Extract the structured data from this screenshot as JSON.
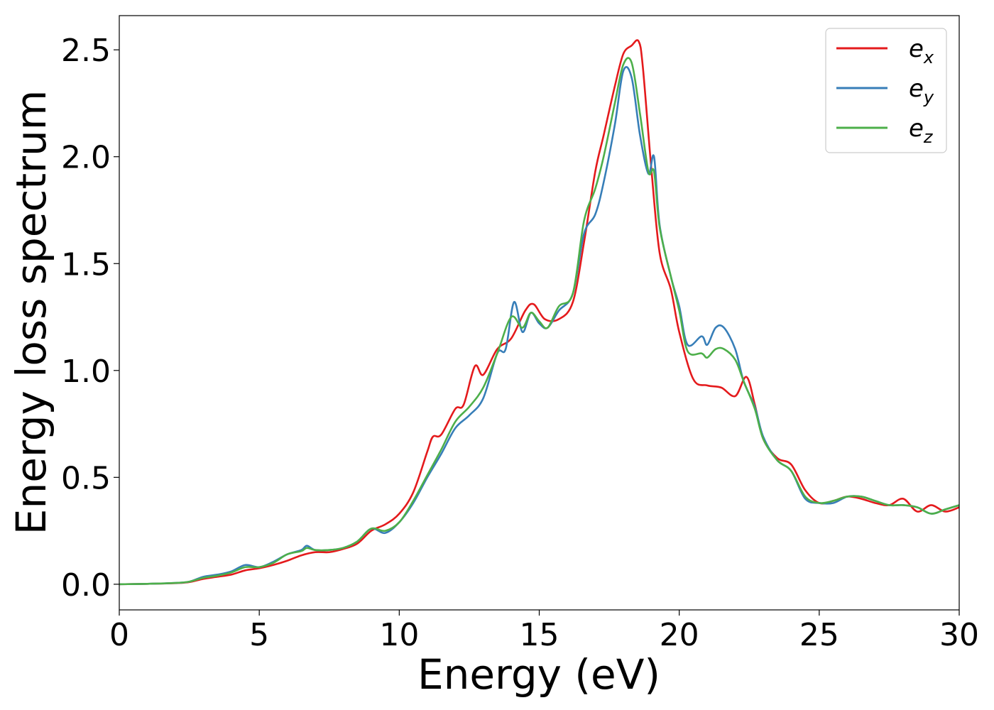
{
  "chart_data": {
    "type": "line",
    "title": "",
    "xlabel": "Energy (eV)",
    "ylabel": "Energy loss spectrum",
    "xlim": [
      0,
      30
    ],
    "ylim": [
      -0.12,
      2.66
    ],
    "xticks": [
      0,
      5,
      10,
      15,
      20,
      25,
      30
    ],
    "xtick_labels": [
      "0",
      "5",
      "10",
      "15",
      "20",
      "25",
      "30"
    ],
    "yticks": [
      0.0,
      0.5,
      1.0,
      1.5,
      2.0,
      2.5
    ],
    "ytick_labels": [
      "0.0",
      "0.5",
      "1.0",
      "1.5",
      "2.0",
      "2.5"
    ],
    "grid": false,
    "legend_position": "top-right",
    "series": [
      {
        "name": "e_x",
        "legend_base": "e",
        "legend_sub": "x",
        "color": "#e41a1c",
        "x": [
          0,
          1,
          2,
          2.5,
          3,
          3.5,
          4,
          4.5,
          5,
          5.5,
          6,
          6.5,
          7,
          7.5,
          8,
          8.5,
          9,
          9.5,
          10,
          10.5,
          11,
          11.2,
          11.5,
          12,
          12.3,
          12.7,
          13,
          13.5,
          14,
          14.5,
          14.8,
          15.2,
          15.7,
          16.2,
          16.6,
          17,
          17.3,
          17.7,
          18,
          18.3,
          18.55,
          18.7,
          19,
          19.3,
          19.7,
          20,
          20.5,
          21,
          21.5,
          22,
          22.4,
          22.7,
          23,
          23.5,
          24,
          24.5,
          25,
          25.5,
          26,
          26.5,
          27,
          27.5,
          28,
          28.5,
          29,
          29.5,
          30
        ],
        "y": [
          0.0,
          0.002,
          0.005,
          0.01,
          0.025,
          0.035,
          0.045,
          0.065,
          0.075,
          0.09,
          0.11,
          0.135,
          0.15,
          0.15,
          0.165,
          0.19,
          0.25,
          0.28,
          0.33,
          0.43,
          0.62,
          0.69,
          0.7,
          0.82,
          0.84,
          1.02,
          0.98,
          1.1,
          1.15,
          1.28,
          1.31,
          1.24,
          1.24,
          1.32,
          1.6,
          1.93,
          2.1,
          2.33,
          2.48,
          2.52,
          2.54,
          2.42,
          1.95,
          1.55,
          1.38,
          1.18,
          0.96,
          0.93,
          0.92,
          0.88,
          0.97,
          0.84,
          0.68,
          0.59,
          0.56,
          0.44,
          0.38,
          0.39,
          0.41,
          0.4,
          0.38,
          0.37,
          0.4,
          0.34,
          0.37,
          0.34,
          0.36
        ]
      },
      {
        "name": "e_y",
        "legend_base": "e",
        "legend_sub": "y",
        "color": "#377eb8",
        "x": [
          0,
          1,
          2,
          2.5,
          3,
          3.5,
          4,
          4.5,
          5,
          5.5,
          6,
          6.5,
          6.7,
          7,
          7.5,
          8,
          8.5,
          9,
          9.5,
          10,
          10.5,
          11,
          11.5,
          12,
          12.5,
          13,
          13.5,
          13.8,
          14.1,
          14.4,
          14.7,
          15,
          15.3,
          15.7,
          16.2,
          16.6,
          17,
          17.3,
          17.7,
          18,
          18.3,
          18.6,
          18.9,
          19.1,
          19.3,
          19.7,
          20,
          20.3,
          20.8,
          21,
          21.3,
          21.6,
          22,
          22.3,
          22.7,
          23,
          23.5,
          24,
          24.5,
          25,
          25.5,
          26,
          26.5,
          27,
          27.5,
          28,
          28.5,
          29,
          29.5,
          30
        ],
        "y": [
          0.0,
          0.002,
          0.006,
          0.012,
          0.035,
          0.045,
          0.06,
          0.09,
          0.08,
          0.105,
          0.14,
          0.16,
          0.18,
          0.16,
          0.16,
          0.17,
          0.2,
          0.26,
          0.24,
          0.29,
          0.38,
          0.5,
          0.61,
          0.73,
          0.79,
          0.87,
          1.08,
          1.1,
          1.32,
          1.18,
          1.27,
          1.22,
          1.2,
          1.28,
          1.36,
          1.64,
          1.73,
          1.88,
          2.15,
          2.4,
          2.37,
          2.1,
          1.92,
          2.0,
          1.68,
          1.44,
          1.3,
          1.12,
          1.16,
          1.12,
          1.2,
          1.2,
          1.1,
          0.95,
          0.83,
          0.69,
          0.58,
          0.53,
          0.4,
          0.38,
          0.38,
          0.41,
          0.41,
          0.39,
          0.37,
          0.37,
          0.36,
          0.33,
          0.35,
          0.37
        ]
      },
      {
        "name": "e_z",
        "legend_base": "e",
        "legend_sub": "z",
        "color": "#4daf4a",
        "x": [
          0,
          1,
          2,
          2.5,
          3,
          3.5,
          4,
          4.5,
          5,
          5.5,
          6,
          6.5,
          6.7,
          7,
          7.5,
          8,
          8.5,
          9,
          9.5,
          10,
          10.5,
          11,
          11.5,
          12,
          12.5,
          13,
          13.5,
          14,
          14.4,
          14.7,
          15,
          15.3,
          15.7,
          16.2,
          16.6,
          17,
          17.3,
          17.7,
          18,
          18.3,
          18.6,
          18.9,
          19.1,
          19.3,
          19.7,
          20,
          20.3,
          20.8,
          21,
          21.3,
          21.6,
          22,
          22.3,
          22.7,
          23,
          23.5,
          24,
          24.5,
          25,
          25.5,
          26,
          26.5,
          27,
          27.5,
          28,
          28.5,
          29,
          29.5,
          30
        ],
        "y": [
          0.0,
          0.002,
          0.006,
          0.012,
          0.03,
          0.04,
          0.055,
          0.08,
          0.08,
          0.1,
          0.14,
          0.155,
          0.17,
          0.16,
          0.16,
          0.17,
          0.2,
          0.26,
          0.25,
          0.29,
          0.39,
          0.51,
          0.63,
          0.76,
          0.83,
          0.92,
          1.08,
          1.25,
          1.2,
          1.27,
          1.23,
          1.2,
          1.3,
          1.36,
          1.7,
          1.85,
          2.0,
          2.25,
          2.43,
          2.44,
          2.2,
          1.93,
          1.93,
          1.67,
          1.44,
          1.28,
          1.09,
          1.08,
          1.06,
          1.1,
          1.1,
          1.05,
          0.95,
          0.82,
          0.68,
          0.58,
          0.53,
          0.41,
          0.38,
          0.39,
          0.41,
          0.41,
          0.39,
          0.37,
          0.37,
          0.36,
          0.33,
          0.35,
          0.37
        ]
      }
    ]
  }
}
